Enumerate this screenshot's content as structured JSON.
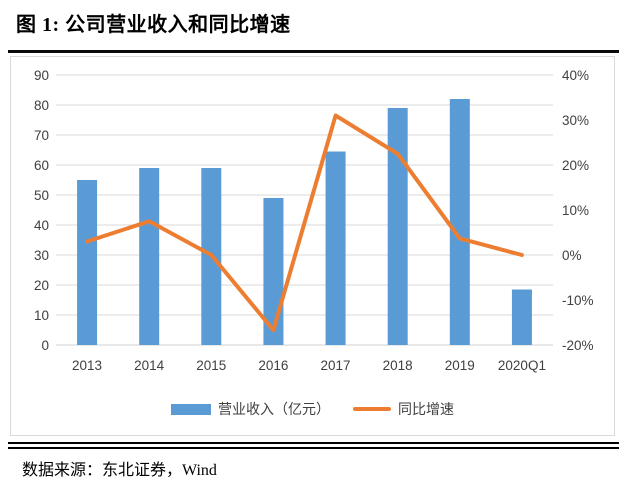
{
  "figure": {
    "title": "图 1: 公司营业收入和同比增速",
    "source": "数据来源：东北证券，Wind"
  },
  "colors": {
    "bar": "#5b9bd5",
    "line": "#ed7d31",
    "grid": "#d9d9d9",
    "axis_text": "#404040",
    "rule": "#000000"
  },
  "chart_data": {
    "type": "bar",
    "subtype": "combo-bar-line",
    "title": "公司营业收入和同比增速",
    "categories": [
      "2013",
      "2014",
      "2015",
      "2016",
      "2017",
      "2018",
      "2019",
      "2020Q1"
    ],
    "series": [
      {
        "name": "营业收入（亿元）",
        "type": "bar",
        "axis": "left",
        "values": [
          55,
          59,
          59,
          49,
          64.5,
          79,
          82,
          18.5
        ]
      },
      {
        "name": "同比增速",
        "type": "line",
        "axis": "right",
        "unit": "%",
        "values": [
          3,
          7.5,
          0,
          -16.7,
          31,
          22.5,
          3.7,
          0
        ]
      }
    ],
    "left_axis": {
      "min": 0,
      "max": 90,
      "step": 10,
      "ticks": [
        "0",
        "10",
        "20",
        "30",
        "40",
        "50",
        "60",
        "70",
        "80",
        "90"
      ]
    },
    "right_axis": {
      "min": -20,
      "max": 40,
      "step": 10,
      "ticks": [
        "-20%",
        "-10%",
        "0%",
        "10%",
        "20%",
        "30%",
        "40%"
      ]
    },
    "grid": true,
    "legend_position": "bottom"
  }
}
